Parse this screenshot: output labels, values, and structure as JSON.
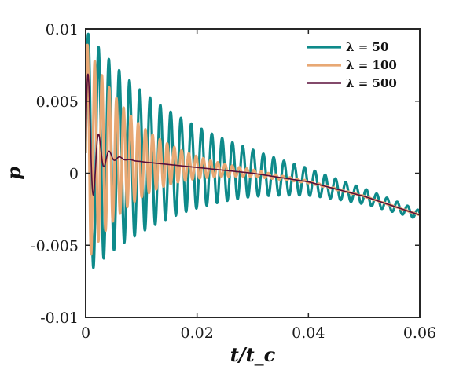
{
  "chart_data": {
    "type": "line",
    "title": "",
    "xlabel": "t/t_c",
    "ylabel": "p",
    "xlim": [
      0,
      0.06
    ],
    "ylim": [
      -0.01,
      0.01
    ],
    "x_ticks": [
      "0",
      "0.02",
      "0.04",
      "0.06"
    ],
    "y_ticks": [
      "-0.01",
      "-0.005",
      "0",
      "0.005",
      "0.01"
    ],
    "x_tick_values": [
      0,
      0.02,
      0.04,
      0.06
    ],
    "y_tick_values": [
      -0.01,
      -0.005,
      0,
      0.005,
      0.01
    ],
    "grid": false,
    "legend_position": "top-right",
    "series": [
      {
        "name": "λ = 50",
        "color": "#0e8a8a",
        "trend": {
          "x": [
            0,
            0.01,
            0.02,
            0.03,
            0.04,
            0.05,
            0.06
          ],
          "y": [
            0.0014,
            0.0008,
            0.0004,
            0.0,
            -0.0006,
            -0.0016,
            -0.0029
          ]
        },
        "oscillation": {
          "initial_amplitude": 0.0085,
          "decay_rate": 55,
          "period": 0.00185
        }
      },
      {
        "name": "λ = 100",
        "color": "#e8a874",
        "trend": {
          "x": [
            0,
            0.01,
            0.02,
            0.03,
            0.04,
            0.05,
            0.06
          ],
          "y": [
            0.0014,
            0.0008,
            0.0004,
            0.0,
            -0.0006,
            -0.0016,
            -0.0029
          ]
        },
        "oscillation": {
          "initial_amplitude": 0.0078,
          "decay_rate": 115,
          "period": 0.0013
        }
      },
      {
        "name": "λ = 500",
        "color": "#5a0f3a",
        "trend": {
          "x": [
            0,
            0.01,
            0.02,
            0.03,
            0.04,
            0.05,
            0.06
          ],
          "y": [
            0.0014,
            0.0008,
            0.0004,
            0.0,
            -0.0006,
            -0.0016,
            -0.0029
          ]
        },
        "oscillation": {
          "initial_amplitude": 0.0075,
          "decay_rate": 700,
          "period": 0.0019
        }
      }
    ]
  }
}
